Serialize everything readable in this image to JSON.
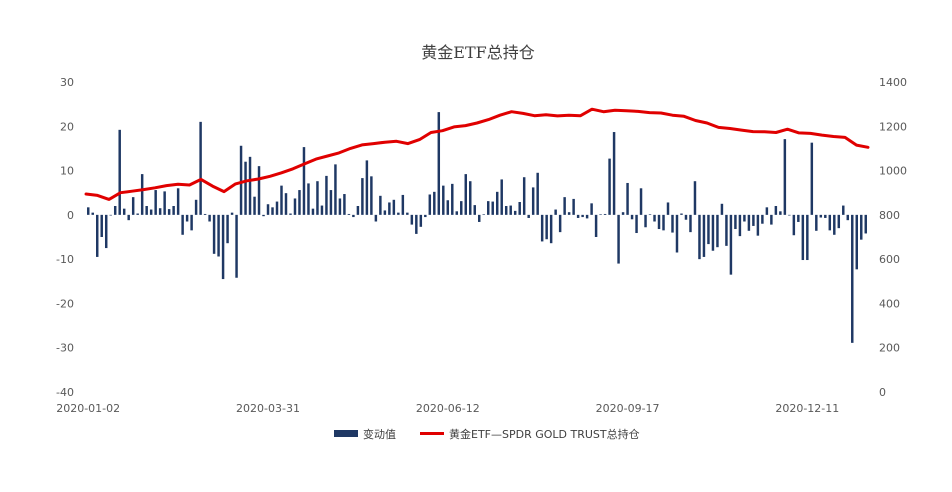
{
  "chart_data": {
    "type": "bar+line",
    "title": "黄金ETF总持仓",
    "x_tick_labels": [
      "2020-01-02",
      "2020-03-31",
      "2020-06-12",
      "2020-09-17",
      "2020-12-11"
    ],
    "y_left": {
      "ticks": [
        30,
        20,
        10,
        0,
        -10,
        -20,
        -30,
        -40
      ],
      "ylim": [
        -40,
        30
      ]
    },
    "y_right": {
      "ticks": [
        1400,
        1200,
        1000,
        800,
        600,
        400,
        200,
        0
      ],
      "ylim": [
        0,
        1400
      ]
    },
    "legend_position": "bottom",
    "series": [
      {
        "name": "变动值",
        "type": "bar",
        "axis": "left",
        "color": "#1f3864",
        "values": [
          1.7,
          0.5,
          -9.5,
          -5.0,
          -7.5,
          0.0,
          2.0,
          19.2,
          1.4,
          -1.2,
          4.0,
          0.3,
          9.2,
          2.0,
          1.2,
          5.6,
          1.5,
          5.3,
          1.3,
          2.0,
          6.0,
          -4.5,
          -1.5,
          -3.5,
          3.4,
          21.0,
          0.2,
          -1.5,
          -8.8,
          -9.4,
          -14.5,
          -6.4,
          0.5,
          -14.2,
          15.6,
          12.0,
          13.1,
          4.1,
          11.0,
          -0.3,
          2.4,
          1.7,
          3.0,
          6.6,
          4.9,
          0.3,
          3.7,
          5.6,
          15.3,
          7.1,
          1.4,
          7.6,
          2.1,
          8.8,
          5.6,
          11.4,
          3.7,
          4.7,
          0.2,
          -0.5,
          2.0,
          8.3,
          12.3,
          8.7,
          -1.5,
          4.3,
          1.0,
          2.8,
          3.4,
          0.5,
          4.5,
          0.5,
          -2.2,
          -4.3,
          -2.7,
          -0.5,
          4.6,
          5.2,
          23.2,
          6.6,
          3.3,
          7.0,
          0.8,
          3.1,
          9.2,
          7.6,
          2.2,
          -1.6,
          0.1,
          3.1,
          3.0,
          5.2,
          8.0,
          2.0,
          2.1,
          0.9,
          2.9,
          8.5,
          -0.7,
          6.2,
          9.5,
          -6.0,
          -5.5,
          -6.4,
          1.2,
          -3.9,
          4.0,
          0.6,
          3.6,
          -0.7,
          -0.5,
          -0.8,
          2.6,
          -5.0,
          0.1,
          0.2,
          12.7,
          18.7,
          -11.0,
          0.6,
          7.2,
          -1.0,
          -4.1,
          6.0,
          -2.8,
          0.1,
          -1.5,
          -3.2,
          -3.5,
          2.8,
          -4.0,
          -8.5,
          0.3,
          -1.1,
          -3.9,
          7.6,
          -10.0,
          -9.5,
          -6.6,
          -8.1,
          -7.3,
          2.5,
          -7.0,
          -13.5,
          -3.2,
          -4.8,
          -1.5,
          -3.6,
          -2.5,
          -4.7,
          -2.0,
          1.7,
          -2.2,
          2.0,
          0.8,
          17.1,
          0.0,
          -4.6,
          -1.6,
          -10.2,
          -10.2,
          16.3,
          -3.6,
          -0.6,
          -0.7,
          -3.5,
          -4.5,
          -3.0,
          2.1,
          -1.2,
          -28.9,
          -12.3,
          -5.6,
          -4.2
        ]
      },
      {
        "name": "黄金ETF—SPDR GOLD TRUST总持仓",
        "type": "line",
        "axis": "right",
        "color": "#e00000",
        "points": [
          [
            0,
            894
          ],
          [
            5,
            888
          ],
          [
            10,
            870
          ],
          [
            15,
            900
          ],
          [
            20,
            907
          ],
          [
            25,
            914
          ],
          [
            30,
            922
          ],
          [
            35,
            932
          ],
          [
            40,
            938
          ],
          [
            45,
            935
          ],
          [
            50,
            960
          ],
          [
            55,
            930
          ],
          [
            60,
            905
          ],
          [
            65,
            940
          ],
          [
            70,
            954
          ],
          [
            75,
            962
          ],
          [
            80,
            974
          ],
          [
            85,
            990
          ],
          [
            90,
            1008
          ],
          [
            95,
            1030
          ],
          [
            100,
            1052
          ],
          [
            105,
            1066
          ],
          [
            110,
            1080
          ],
          [
            115,
            1100
          ],
          [
            120,
            1116
          ],
          [
            125,
            1122
          ],
          [
            130,
            1128
          ],
          [
            135,
            1132
          ],
          [
            140,
            1122
          ],
          [
            145,
            1140
          ],
          [
            150,
            1172
          ],
          [
            155,
            1180
          ],
          [
            160,
            1197
          ],
          [
            165,
            1203
          ],
          [
            170,
            1215
          ],
          [
            175,
            1230
          ],
          [
            180,
            1250
          ],
          [
            185,
            1266
          ],
          [
            190,
            1258
          ],
          [
            195,
            1248
          ],
          [
            200,
            1252
          ],
          [
            205,
            1247
          ],
          [
            210,
            1250
          ],
          [
            215,
            1248
          ],
          [
            220,
            1277
          ],
          [
            225,
            1266
          ],
          [
            230,
            1272
          ],
          [
            235,
            1270
          ],
          [
            240,
            1267
          ],
          [
            245,
            1262
          ],
          [
            250,
            1260
          ],
          [
            255,
            1250
          ],
          [
            260,
            1245
          ],
          [
            265,
            1226
          ],
          [
            270,
            1215
          ],
          [
            275,
            1195
          ],
          [
            280,
            1190
          ],
          [
            285,
            1183
          ],
          [
            290,
            1176
          ],
          [
            295,
            1175
          ],
          [
            300,
            1172
          ],
          [
            305,
            1187
          ],
          [
            310,
            1170
          ],
          [
            315,
            1168
          ],
          [
            320,
            1160
          ],
          [
            325,
            1154
          ],
          [
            330,
            1150
          ],
          [
            335,
            1115
          ],
          [
            340,
            1105
          ]
        ]
      }
    ]
  }
}
